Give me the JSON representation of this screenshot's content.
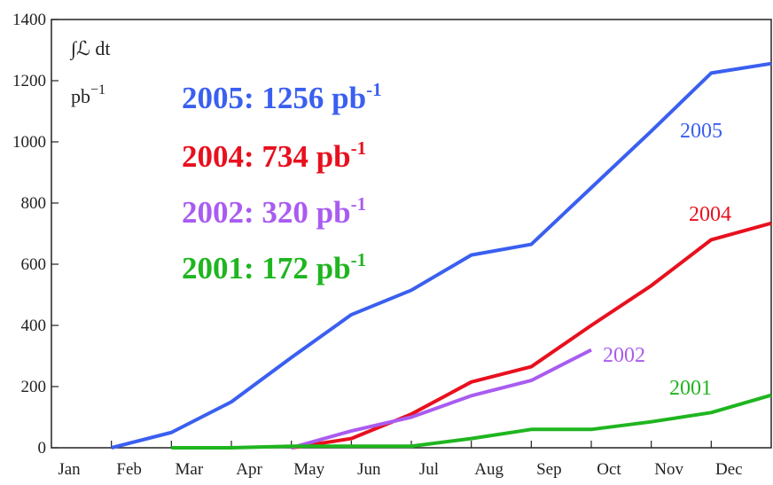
{
  "chart_data": {
    "type": "line",
    "ylabel": "∫ℒ dt",
    "yunit": "pb",
    "yunit_sup": "−1",
    "categories": [
      "Jan",
      "Feb",
      "Mar",
      "Apr",
      "May",
      "Jun",
      "Jul",
      "Aug",
      "Sep",
      "Oct",
      "Nov",
      "Dec"
    ],
    "x": [
      1,
      2,
      3,
      4,
      5,
      6,
      7,
      8,
      9,
      10,
      11,
      12
    ],
    "xlim": [
      0,
      12
    ],
    "ylim": [
      0,
      1400
    ],
    "yticks": [
      0,
      200,
      400,
      600,
      800,
      1000,
      1200,
      1400
    ],
    "series": [
      {
        "name": "2005",
        "color": "#3a5ff0",
        "values": [
          0,
          50,
          150,
          295,
          435,
          515,
          630,
          665,
          850,
          1035,
          1225,
          1256
        ]
      },
      {
        "name": "2004",
        "color": "#e8101e",
        "values": [
          null,
          null,
          null,
          0,
          30,
          110,
          215,
          265,
          400,
          530,
          680,
          734
        ]
      },
      {
        "name": "2002",
        "color": "#a95cf0",
        "values": [
          null,
          null,
          null,
          0,
          55,
          100,
          170,
          220,
          320,
          null,
          null,
          null
        ]
      },
      {
        "name": "2001",
        "color": "#1fb51f",
        "values": [
          null,
          0,
          0,
          5,
          5,
          5,
          30,
          60,
          60,
          85,
          115,
          172
        ]
      }
    ],
    "legend_labels": [
      {
        "text": "2005: 1256 pb",
        "sup": "-1"
      },
      {
        "text": "2004: 734 pb",
        "sup": "-1"
      },
      {
        "text": "2002: 320 pb",
        "sup": "-1"
      },
      {
        "text": "2001: 172 pb",
        "sup": "-1"
      }
    ]
  }
}
